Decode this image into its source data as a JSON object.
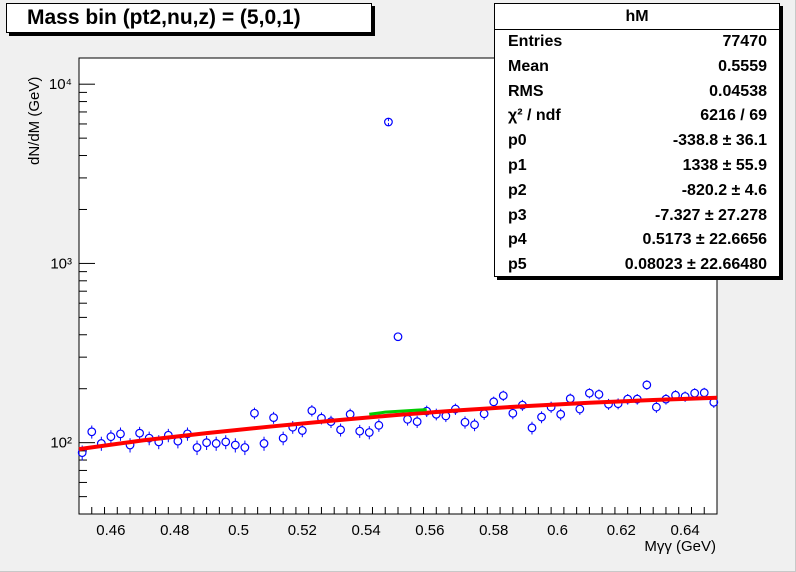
{
  "canvas": {
    "background": "#f0f0f0"
  },
  "title": "Mass bin (pt2,nu,z) = (5,0,1)",
  "stats": {
    "name": "hM",
    "rows": [
      {
        "label": "Entries",
        "value": "77470"
      },
      {
        "label": "Mean",
        "value": "0.5559"
      },
      {
        "label": "RMS",
        "value": "0.04538"
      },
      {
        "label": "χ² / ndf",
        "value": "6216 / 69"
      },
      {
        "label": "p0",
        "value": "-338.8 ± 36.1"
      },
      {
        "label": "p1",
        "value": "1338 ± 55.9"
      },
      {
        "label": "p2",
        "value": "-820.2 ± 4.6"
      },
      {
        "label": "p3",
        "value": "-7.327 ± 27.278"
      },
      {
        "label": "p4",
        "value": "0.5173 ± 22.6656"
      },
      {
        "label": "p5",
        "value": "0.08023 ± 22.66480"
      }
    ]
  },
  "chart_data": {
    "type": "scatter",
    "xlabel": "Mγγ (GeV)",
    "ylabel": "dN/dM (GeV)",
    "xlim": [
      0.45,
      0.65
    ],
    "ylim": [
      40,
      14000
    ],
    "ylog": true,
    "grid": false,
    "xticks": [
      "0.46",
      "0.48",
      "0.5",
      "0.52",
      "0.54",
      "0.56",
      "0.58",
      "0.6",
      "0.62",
      "0.64"
    ],
    "yticks": [
      "10²",
      "10³",
      "10⁴"
    ],
    "marker_color": "#0000ff",
    "fit_color": "#ff0000",
    "signal_color": "#00cc00",
    "x": [
      0.451,
      0.454,
      0.457,
      0.46,
      0.463,
      0.466,
      0.469,
      0.472,
      0.475,
      0.478,
      0.481,
      0.484,
      0.487,
      0.49,
      0.493,
      0.496,
      0.499,
      0.502,
      0.505,
      0.508,
      0.511,
      0.514,
      0.517,
      0.52,
      0.523,
      0.526,
      0.529,
      0.532,
      0.535,
      0.538,
      0.541,
      0.544,
      0.547,
      0.55,
      0.553,
      0.556,
      0.559,
      0.562,
      0.565,
      0.568,
      0.571,
      0.574,
      0.577,
      0.58,
      0.583,
      0.586,
      0.589,
      0.592,
      0.595,
      0.598,
      0.601,
      0.604,
      0.607,
      0.61,
      0.613,
      0.616,
      0.619,
      0.622,
      0.625,
      0.628,
      0.631,
      0.634,
      0.637,
      0.64,
      0.643,
      0.646,
      0.649
    ],
    "y": [
      88,
      115,
      99,
      108,
      112,
      97,
      113,
      106,
      101,
      110,
      102,
      112,
      94,
      100,
      99,
      101,
      97,
      94,
      146,
      99,
      138,
      106,
      122,
      117,
      151,
      137,
      131,
      118,
      144,
      116,
      114,
      125,
      6150,
      390,
      135,
      131,
      150,
      144,
      141,
      154,
      130,
      126,
      145,
      169,
      183,
      146,
      162,
      121,
      139,
      158,
      144,
      176,
      154,
      189,
      186,
      164,
      165,
      175,
      175,
      210,
      158,
      175,
      184,
      181,
      189,
      190,
      168
    ],
    "fit": [
      [
        0.45,
        92
      ],
      [
        0.47,
        103
      ],
      [
        0.49,
        113
      ],
      [
        0.51,
        123
      ],
      [
        0.53,
        133
      ],
      [
        0.55,
        143
      ],
      [
        0.57,
        152
      ],
      [
        0.59,
        160
      ],
      [
        0.61,
        167
      ],
      [
        0.63,
        173
      ],
      [
        0.65,
        178
      ]
    ],
    "signal": [
      [
        0.541,
        144
      ],
      [
        0.546,
        148
      ],
      [
        0.551,
        150
      ],
      [
        0.556,
        152
      ],
      [
        0.559,
        153
      ]
    ]
  }
}
